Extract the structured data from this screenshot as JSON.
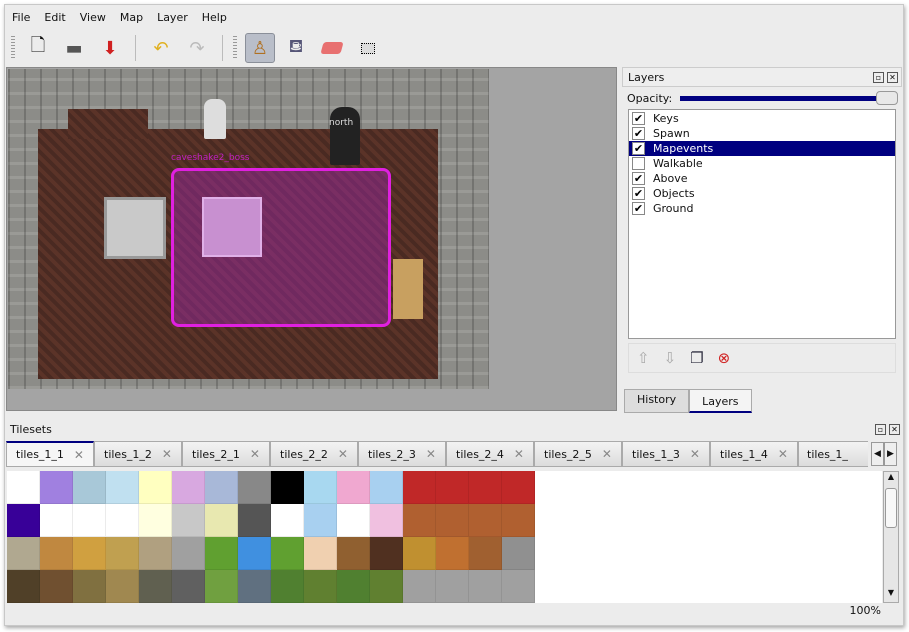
{
  "menu": [
    "File",
    "Edit",
    "View",
    "Map",
    "Layer",
    "Help"
  ],
  "toolbar": {
    "new": "new-file",
    "open": "open",
    "save": "save",
    "undo": "undo",
    "redo": "redo",
    "stamp": "stamp-brush",
    "fill": "bucket-fill",
    "eraser": "eraser",
    "select": "rect-select"
  },
  "map": {
    "object_label": "caveshake2_boss",
    "north_label": "north",
    "region_color": "#e020e0"
  },
  "layers_panel": {
    "title": "Layers",
    "opacity_label": "Opacity:",
    "opacity": 1.0,
    "layers": [
      {
        "name": "Keys",
        "visible": true
      },
      {
        "name": "Spawn",
        "visible": true
      },
      {
        "name": "Mapevents",
        "visible": true,
        "selected": true
      },
      {
        "name": "Walkable",
        "visible": false
      },
      {
        "name": "Above",
        "visible": true
      },
      {
        "name": "Objects",
        "visible": true
      },
      {
        "name": "Ground",
        "visible": true
      }
    ],
    "tabs": [
      "History",
      "Layers"
    ],
    "active_tab": "Layers"
  },
  "tilesets": {
    "title": "Tilesets",
    "tabs": [
      "tiles_1_1",
      "tiles_1_2",
      "tiles_2_1",
      "tiles_2_2",
      "tiles_2_3",
      "tiles_2_4",
      "tiles_2_5",
      "tiles_1_3",
      "tiles_1_4",
      "tiles_1_"
    ],
    "active": "tiles_1_1",
    "tile_colors": [
      "#ffffff",
      "#a080e0",
      "#a8c8d8",
      "#c0e0f0",
      "#ffffc0",
      "#d8a8e0",
      "#a8b8d8",
      "#888888",
      "#000000",
      "#a8d8f0",
      "#f0a8d0",
      "#a8d0f0",
      "#c02828",
      "#c02828",
      "#c02828",
      "#c02828",
      "#380098",
      "#ffffff",
      "#ffffff",
      "#ffffff",
      "#ffffe0",
      "#c8c8c8",
      "#e8e8b0",
      "#555555",
      "#ffffff",
      "#a8d0f0",
      "#ffffff",
      "#f0c0e0",
      "#b06030",
      "#b06030",
      "#b06030",
      "#b06030",
      "#b0a890",
      "#c08840",
      "#d0a040",
      "#c0a050",
      "#b0a080",
      "#a0a0a0",
      "#60a030",
      "#4090e0",
      "#60a030",
      "#f0d0b0",
      "#906030",
      "#503020",
      "#c09030",
      "#c07030",
      "#a06030",
      "#909090",
      "#504028",
      "#705030",
      "#807040",
      "#a08850",
      "#606050",
      "#606060",
      "#70a040",
      "#607080",
      "#508030",
      "#608030",
      "#508030",
      "#608030",
      "#a0a0a0",
      "#a0a0a0",
      "#a0a0a0",
      "#a0a0a0"
    ]
  },
  "status": {
    "zoom": "100%"
  }
}
